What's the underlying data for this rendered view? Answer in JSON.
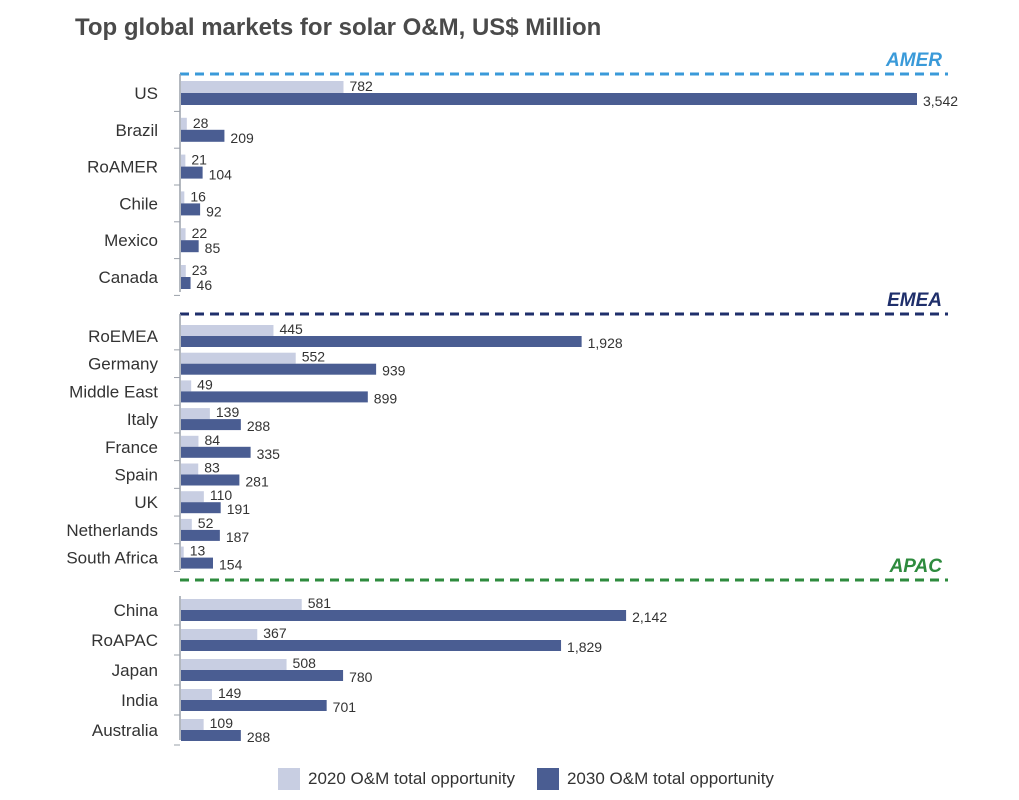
{
  "title": "Top global markets for solar O&M, US$ Million",
  "colors": {
    "v2020": "#c8cee2",
    "v2030": "#4a5d92",
    "axis": "#9aa0aa",
    "text": "#333333",
    "region_AMER": "#3a9ad9",
    "region_EMEA": "#1f2f6b",
    "region_APAC": "#2e8b3e"
  },
  "legend": {
    "v2020_label": "2020 O&M total opportunity",
    "v2030_label": "2030 O&M total opportunity"
  },
  "chart_data": {
    "type": "bar",
    "orientation": "horizontal",
    "title": "Top global markets for solar O&M, US$ Million",
    "legend_position": "bottom",
    "series_names": [
      "2020 O&M total opportunity",
      "2030 O&M total opportunity"
    ],
    "xlim": [
      0,
      3542
    ],
    "groups": [
      {
        "region": "AMER",
        "markets": [
          {
            "name": "US",
            "v2020": 782,
            "v2030": 3542,
            "label2020": "782",
            "label2030": "3,542"
          },
          {
            "name": "Brazil",
            "v2020": 28,
            "v2030": 209,
            "label2020": "28",
            "label2030": "209"
          },
          {
            "name": "RoAMER",
            "v2020": 21,
            "v2030": 104,
            "label2020": "21",
            "label2030": "104"
          },
          {
            "name": "Chile",
            "v2020": 16,
            "v2030": 92,
            "label2020": "16",
            "label2030": "92"
          },
          {
            "name": "Mexico",
            "v2020": 22,
            "v2030": 85,
            "label2020": "22",
            "label2030": "85"
          },
          {
            "name": "Canada",
            "v2020": 23,
            "v2030": 46,
            "label2020": "23",
            "label2030": "46"
          }
        ]
      },
      {
        "region": "EMEA",
        "markets": [
          {
            "name": "RoEMEA",
            "v2020": 445,
            "v2030": 1928,
            "label2020": "445",
            "label2030": "1,928"
          },
          {
            "name": "Germany",
            "v2020": 552,
            "v2030": 939,
            "label2020": "552",
            "label2030": "939"
          },
          {
            "name": "Middle East",
            "v2020": 49,
            "v2030": 899,
            "label2020": "49",
            "label2030": "899"
          },
          {
            "name": "Italy",
            "v2020": 139,
            "v2030": 288,
            "label2020": "139",
            "label2030": "288"
          },
          {
            "name": "France",
            "v2020": 84,
            "v2030": 335,
            "label2020": "84",
            "label2030": "335"
          },
          {
            "name": "Spain",
            "v2020": 83,
            "v2030": 281,
            "label2020": "83",
            "label2030": "281"
          },
          {
            "name": "UK",
            "v2020": 110,
            "v2030": 191,
            "label2020": "110",
            "label2030": "191"
          },
          {
            "name": "Netherlands",
            "v2020": 52,
            "v2030": 187,
            "label2020": "52",
            "label2030": "187"
          },
          {
            "name": "South Africa",
            "v2020": 13,
            "v2030": 154,
            "label2020": "13",
            "label2030": "154"
          }
        ]
      },
      {
        "region": "APAC",
        "markets": [
          {
            "name": "China",
            "v2020": 581,
            "v2030": 2142,
            "label2020": "581",
            "label2030": "2,142"
          },
          {
            "name": "RoAPAC",
            "v2020": 367,
            "v2030": 1829,
            "label2020": "367",
            "label2030": "1,829"
          },
          {
            "name": "Japan",
            "v2020": 508,
            "v2030": 780,
            "label2020": "508",
            "label2030": "780"
          },
          {
            "name": "India",
            "v2020": 149,
            "v2030": 701,
            "label2020": "149",
            "label2030": "701"
          },
          {
            "name": "Australia",
            "v2020": 109,
            "v2030": 288,
            "label2020": "109",
            "label2030": "288"
          }
        ]
      }
    ]
  }
}
